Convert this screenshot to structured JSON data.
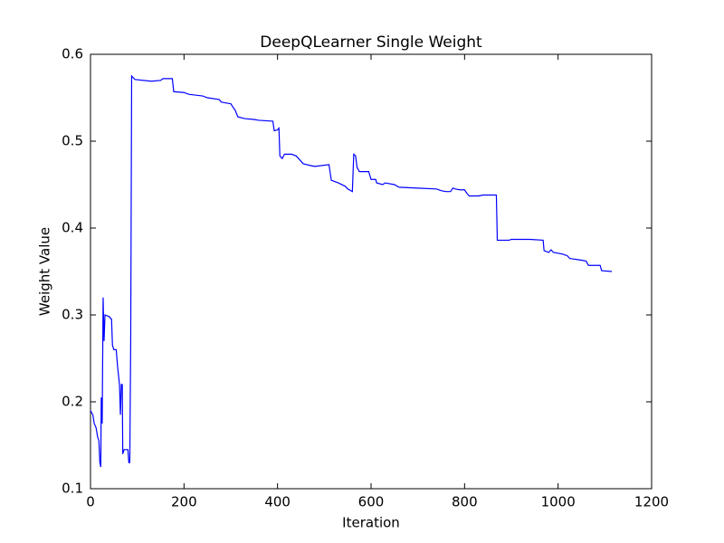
{
  "chart_data": {
    "type": "line",
    "title": "DeepQLearner Single Weight",
    "x_label": "Iteration",
    "y_label": "Weight Value",
    "color": "#0000ff",
    "xlim": [
      0,
      1200
    ],
    "xticks": [
      0,
      200,
      400,
      600,
      800,
      1000,
      1200
    ],
    "ylim": [
      0.1,
      0.6
    ],
    "yticks": [
      0.1,
      0.2,
      0.3,
      0.4,
      0.5,
      0.6
    ],
    "x": [
      0,
      5,
      8,
      12,
      15,
      18,
      20,
      22,
      23,
      25,
      27,
      29,
      31,
      40,
      45,
      47,
      50,
      55,
      58,
      62,
      64,
      66,
      68,
      69,
      72,
      80,
      82,
      84,
      86,
      88,
      95,
      130,
      150,
      155,
      175,
      178,
      200,
      210,
      240,
      250,
      275,
      280,
      300,
      310,
      315,
      330,
      350,
      360,
      390,
      393,
      400,
      403,
      405,
      410,
      415,
      430,
      440,
      455,
      470,
      480,
      510,
      515,
      530,
      545,
      550,
      560,
      563,
      567,
      570,
      575,
      595,
      600,
      610,
      612,
      625,
      630,
      650,
      660,
      700,
      740,
      750,
      760,
      770,
      775,
      780,
      790,
      800,
      805,
      810,
      830,
      840,
      868,
      870,
      895,
      900,
      940,
      968,
      970,
      980,
      985,
      990,
      1010,
      1020,
      1025,
      1050,
      1060,
      1065,
      1090,
      1093,
      1115
    ],
    "values": [
      0.19,
      0.185,
      0.175,
      0.17,
      0.16,
      0.155,
      0.13,
      0.125,
      0.205,
      0.175,
      0.32,
      0.27,
      0.3,
      0.298,
      0.295,
      0.265,
      0.26,
      0.26,
      0.24,
      0.22,
      0.185,
      0.22,
      0.22,
      0.14,
      0.145,
      0.145,
      0.13,
      0.13,
      0.27,
      0.575,
      0.571,
      0.569,
      0.57,
      0.572,
      0.572,
      0.557,
      0.556,
      0.554,
      0.552,
      0.55,
      0.548,
      0.545,
      0.543,
      0.535,
      0.528,
      0.526,
      0.525,
      0.524,
      0.523,
      0.512,
      0.513,
      0.515,
      0.483,
      0.48,
      0.485,
      0.485,
      0.483,
      0.474,
      0.472,
      0.471,
      0.473,
      0.455,
      0.452,
      0.448,
      0.445,
      0.442,
      0.485,
      0.483,
      0.47,
      0.465,
      0.465,
      0.456,
      0.456,
      0.452,
      0.45,
      0.452,
      0.45,
      0.447,
      0.446,
      0.445,
      0.443,
      0.442,
      0.442,
      0.446,
      0.445,
      0.444,
      0.444,
      0.44,
      0.437,
      0.437,
      0.438,
      0.438,
      0.386,
      0.386,
      0.387,
      0.387,
      0.386,
      0.374,
      0.372,
      0.375,
      0.372,
      0.37,
      0.368,
      0.365,
      0.363,
      0.362,
      0.357,
      0.357,
      0.351,
      0.35
    ]
  }
}
